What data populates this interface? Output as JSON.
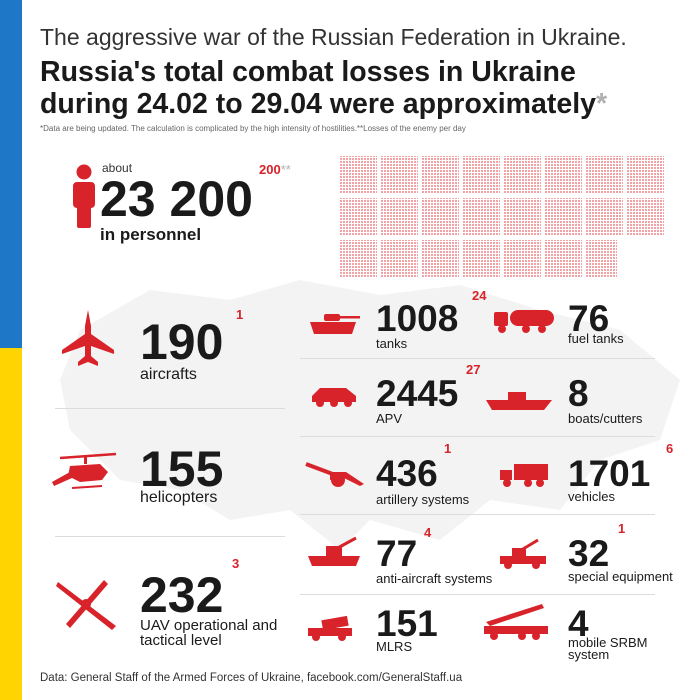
{
  "header": {
    "subtitle": "The aggressive war of the Russian Federation in Ukraine.",
    "title_line1": "Russia's total combat losses in Ukraine",
    "title_line2": "during 24.02 to 29.04 were approximately",
    "title_star": "*",
    "note": "*Data are being updated. The calculation is complicated by the high intensity of hostilities.**Losses of the enemy per day"
  },
  "personnel": {
    "about": "about",
    "value": "23 200",
    "daily": "200",
    "daily_stars": "**",
    "label": "in personnel"
  },
  "left": {
    "aircrafts": {
      "value": "190",
      "daily": "1",
      "label": "aircrafts",
      "icon": "fighter-jet-icon"
    },
    "helicopters": {
      "value": "155",
      "daily": "",
      "label": "helicopters",
      "icon": "helicopter-icon"
    },
    "uav": {
      "value": "232",
      "daily": "3",
      "label_line1": "UAV operational and",
      "label_line2": "tactical level",
      "icon": "drone-icon"
    }
  },
  "right": {
    "tanks": {
      "value": "1008",
      "daily": "24",
      "label": "tanks",
      "icon": "tank-icon"
    },
    "fuel_tanks": {
      "value": "76",
      "daily": "",
      "label": "fuel tanks",
      "icon": "fuel-tank-icon"
    },
    "apv": {
      "value": "2445",
      "daily": "27",
      "label": "APV",
      "icon": "apv-icon"
    },
    "boats": {
      "value": "8",
      "daily": "",
      "label": "boats/cutters",
      "icon": "boat-icon"
    },
    "artillery": {
      "value": "436",
      "daily": "1",
      "label": "artillery systems",
      "icon": "artillery-icon"
    },
    "vehicles": {
      "value": "1701",
      "daily": "6",
      "label": "vehicles",
      "icon": "truck-icon"
    },
    "anti_aircraft": {
      "value": "77",
      "daily": "4",
      "label": "anti-aircraft systems",
      "icon": "anti-aircraft-icon"
    },
    "special": {
      "value": "32",
      "daily": "1",
      "label": "special equipment",
      "icon": "special-equipment-icon"
    },
    "mlrs": {
      "value": "151",
      "daily": "",
      "label": "MLRS",
      "icon": "mlrs-icon"
    },
    "srbm": {
      "value": "4",
      "daily": "",
      "label_line1": "mobile SRBM",
      "label_line2": "system",
      "icon": "srbm-launcher-icon"
    }
  },
  "footer": {
    "source": "Data: General Staff of the Armed Forces of Ukraine, facebook.com/GeneralStaff.ua"
  },
  "colors": {
    "accent": "#d8232a",
    "flag_blue": "#1f77c8",
    "flag_yellow": "#ffd400",
    "text": "#1a1a1a"
  }
}
